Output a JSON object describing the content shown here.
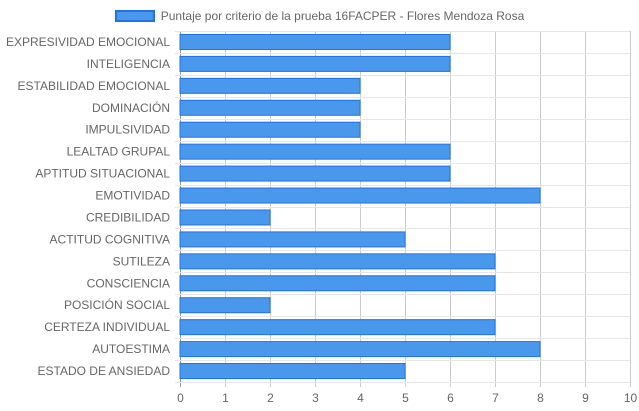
{
  "chart_data": {
    "type": "bar",
    "orientation": "horizontal",
    "categories": [
      "EXPRESIVIDAD EMOCIONAL",
      "INTELIGENCIA",
      "ESTABILIDAD EMOCIONAL",
      "DOMINACIÓN",
      "IMPULSIVIDAD",
      "LEALTAD GRUPAL",
      "APTITUD SITUACIONAL",
      "EMOTIVIDAD",
      "CREDIBILIDAD",
      "ACTITUD COGNITIVA",
      "SUTILEZA",
      "CONSCIENCIA",
      "POSICIÓN SOCIAL",
      "CERTEZA INDIVIDUAL",
      "AUTOESTIMA",
      "ESTADO DE ANSIEDAD"
    ],
    "series": [
      {
        "name": "Puntaje por criterio de la prueba 16FACPER - Flores Mendoza Rosa",
        "values": [
          6,
          6,
          4,
          4,
          4,
          6,
          6,
          8,
          2,
          5,
          7,
          7,
          2,
          7,
          8,
          5
        ],
        "color": "#4a98ec",
        "border_color": "#1e73e8"
      }
    ],
    "xlim": [
      0,
      10
    ],
    "xticks": [
      "0",
      "1",
      "2",
      "3",
      "4",
      "5",
      "6",
      "7",
      "8",
      "9",
      "10"
    ],
    "title": "",
    "xlabel": "",
    "ylabel": "",
    "grid": true,
    "legend_position": "top-center"
  }
}
